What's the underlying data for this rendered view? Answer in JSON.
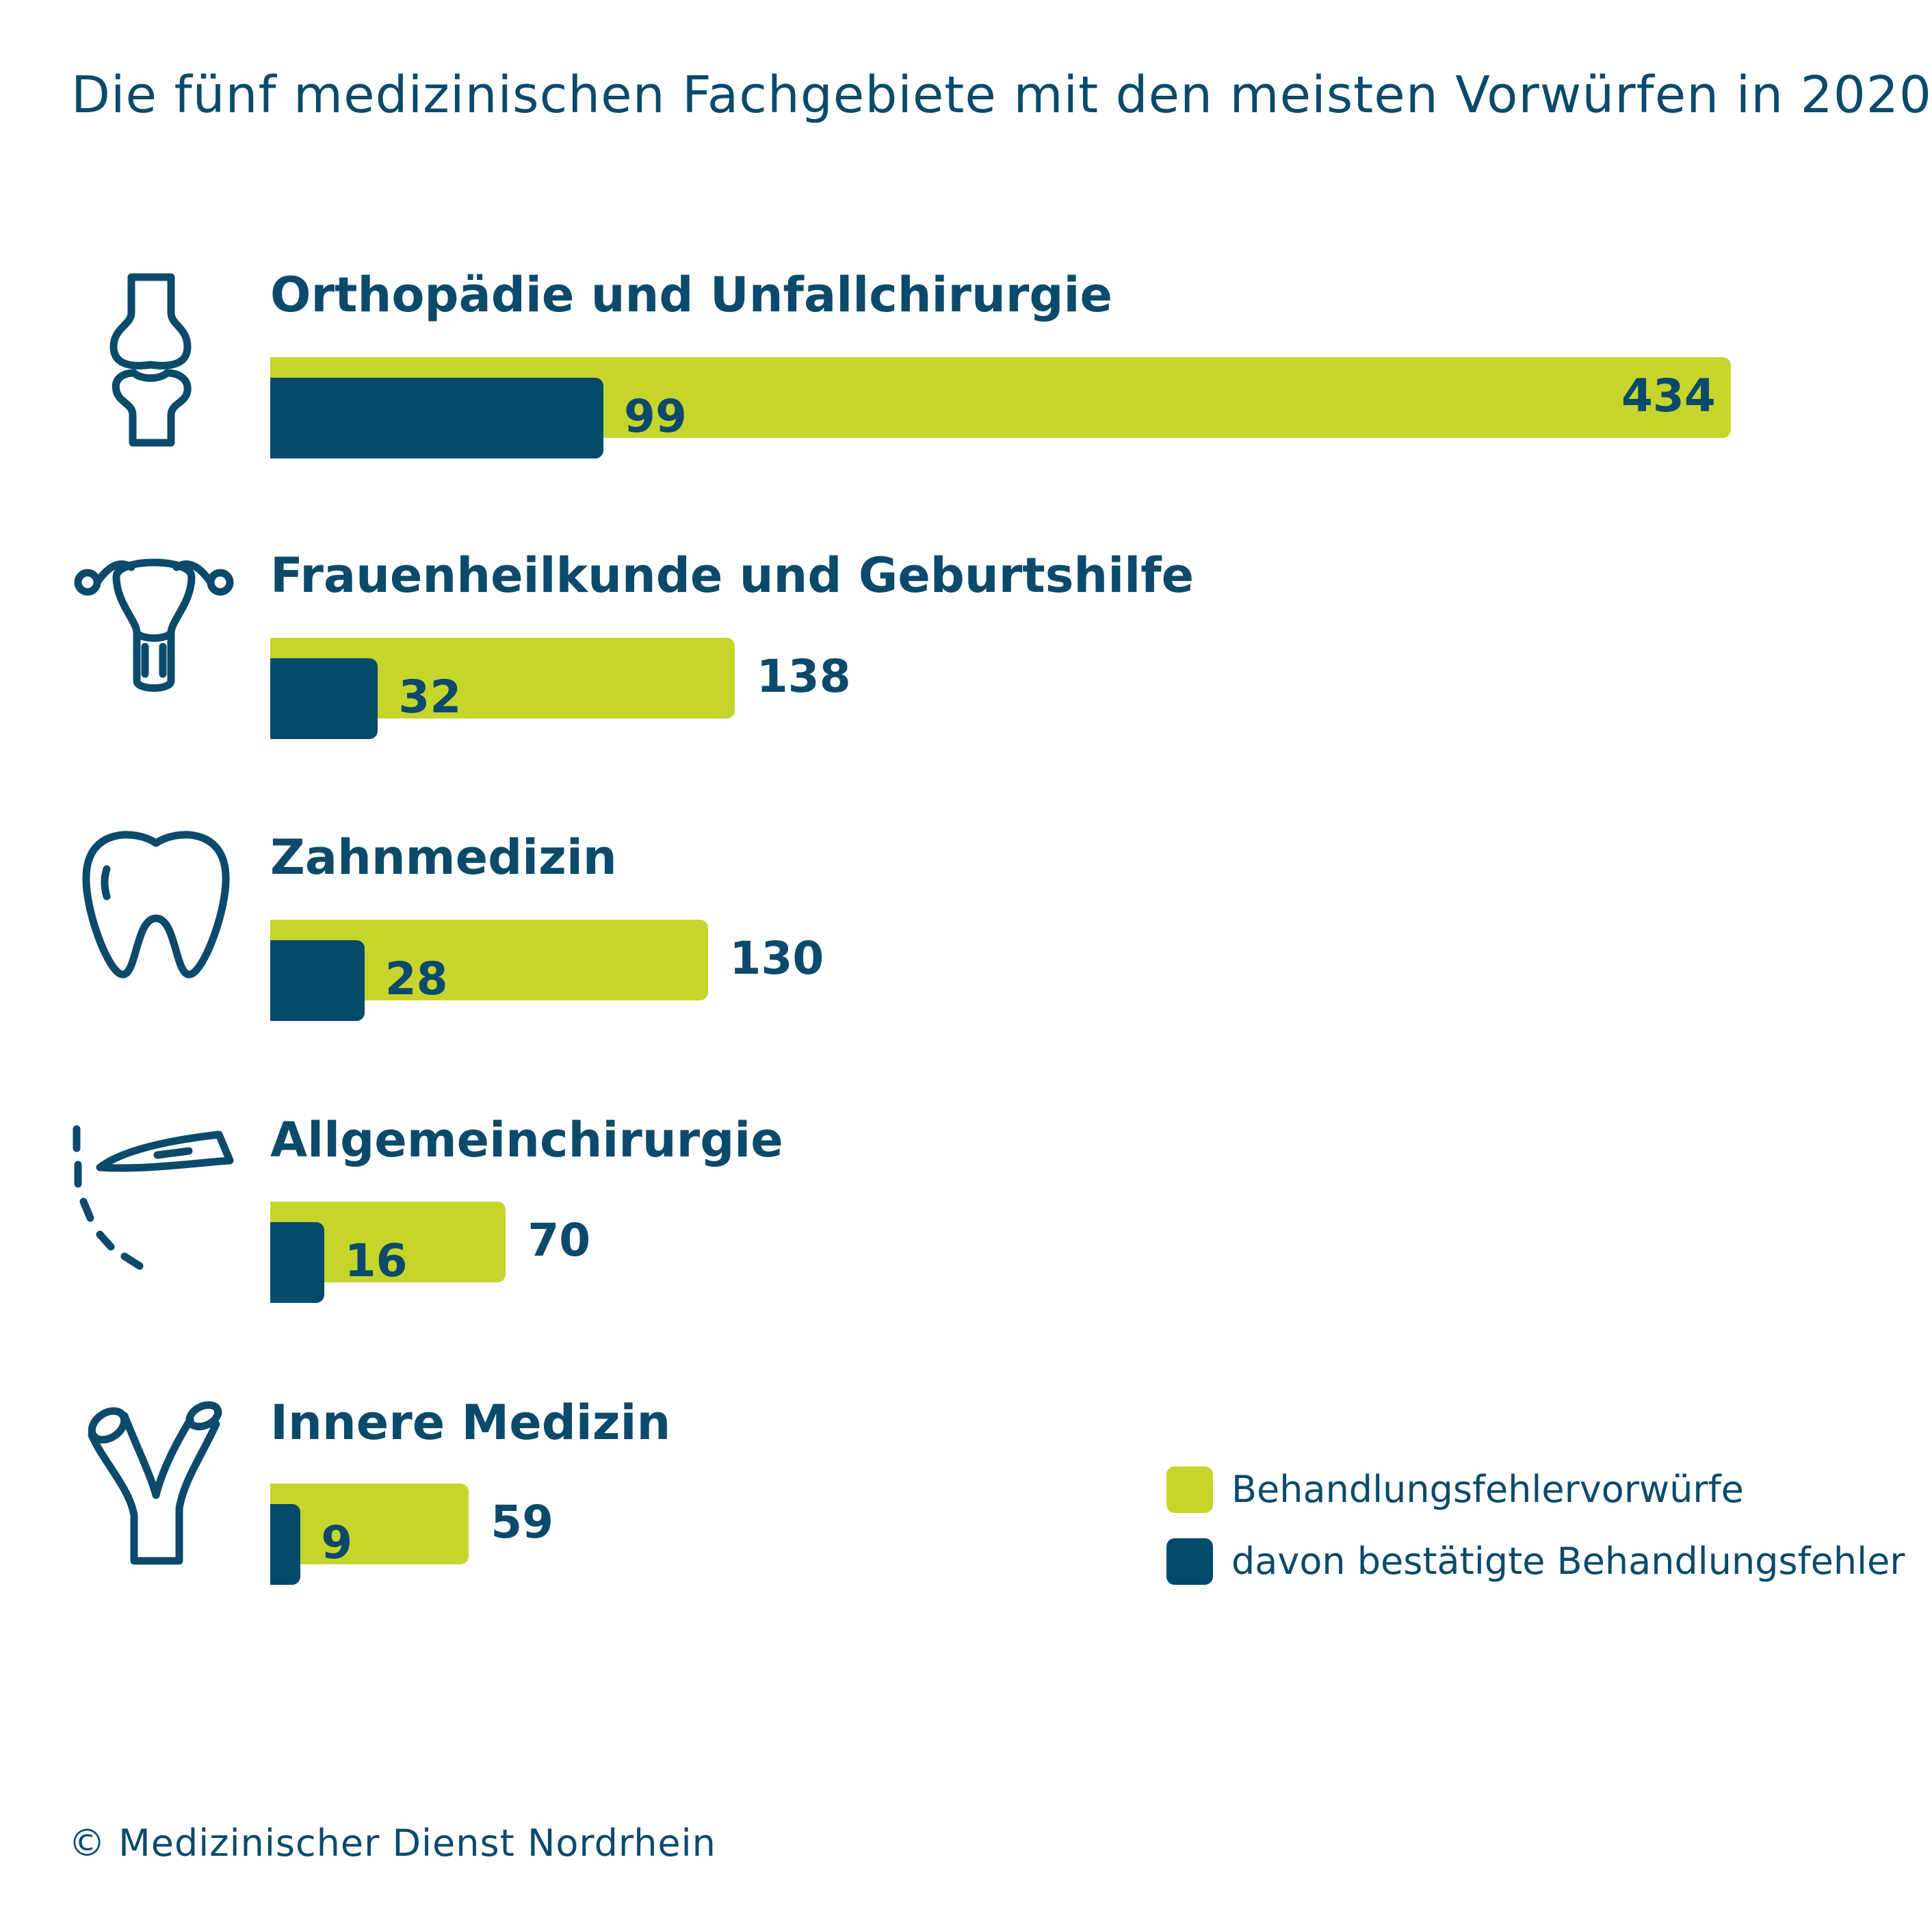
{
  "chart_data": {
    "type": "bar",
    "orientation": "horizontal",
    "title": "Die fünf medizinischen Fachgebiete mit den meisten Vorwürfen in 2020",
    "categories": [
      "Orthopädie und Unfallchirurgie",
      "Frauenheilkunde und Geburtshilfe",
      "Zahnmedizin",
      "Allgemeinchirurgie",
      "Innere Medizin"
    ],
    "series": [
      {
        "name": "Behandlungsfehlervorwürfe",
        "color": "#c6d52c",
        "values": [
          434,
          138,
          130,
          70,
          59
        ]
      },
      {
        "name": "davon bestätigte Behandlungsfehler",
        "color": "#044a6b",
        "values": [
          99,
          32,
          28,
          16,
          9
        ]
      }
    ],
    "icons": [
      "knee-joint-icon",
      "uterus-icon",
      "tooth-icon",
      "scalpel-icon",
      "vein-icon"
    ],
    "legend_position": "bottom-right",
    "xlim": [
      0,
      434
    ]
  },
  "footer": "© Medizinischer Dienst Nordrhein"
}
